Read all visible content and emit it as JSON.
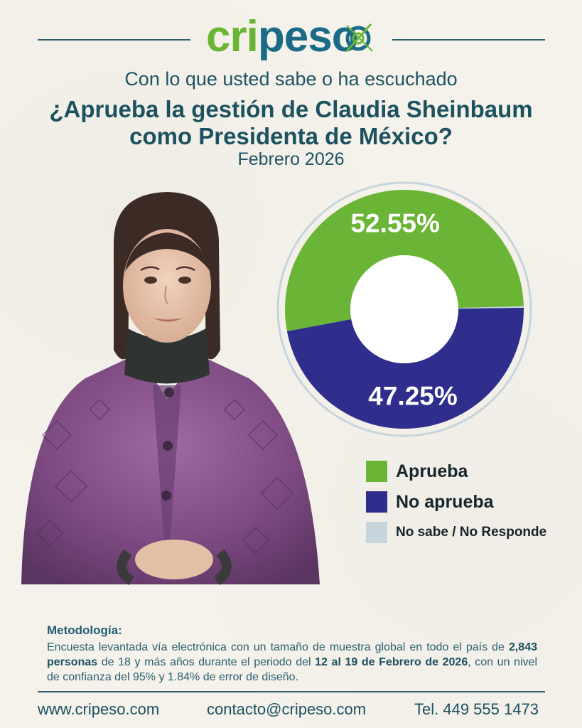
{
  "brand": {
    "logo_text": "cripeso",
    "logo_parts": [
      "cri",
      "pes",
      "o"
    ],
    "colors": {
      "green": "#6bb536",
      "blue": "#1b6b86"
    }
  },
  "header": {
    "subtitle": "Con lo que usted sabe o ha escuchado",
    "question_line1": "¿Aprueba la gestión de Claudia Sheinbaum",
    "question_line2": "como Presidenta de México?",
    "date": "Febrero 2026"
  },
  "chart_data": {
    "type": "pie",
    "style": "donut",
    "categories": [
      "Aprueba",
      "No aprueba",
      "No sabe / No Responde"
    ],
    "values": [
      52.55,
      47.25,
      0.2
    ],
    "labels": [
      "52.55%",
      "47.25%",
      ""
    ],
    "colors": [
      "#6bb536",
      "#2f2e8c",
      "#c7d4dc"
    ],
    "legend_position": "bottom-right"
  },
  "legend": {
    "items": [
      {
        "label": "Aprueba",
        "color": "#6bb536"
      },
      {
        "label": "No aprueba",
        "color": "#2f2e8c"
      },
      {
        "label": "No sabe / No Responde",
        "color": "#c7d4dc"
      }
    ]
  },
  "methodology": {
    "heading": "Metodología:",
    "p1": "Encuesta levantada vía electrónica con un tamaño de muestra global en todo el país de ",
    "b1": "2,843 personas",
    "p2": " de 18 y más años durante el periodo del ",
    "b2": "12 al 19 de Febrero de 2026",
    "p3": ", con un nivel de confianza del 95% y 1.84% de error de diseño."
  },
  "footer": {
    "website": "www.cripeso.com",
    "email": "contacto@cripeso.com",
    "phone": "Tel. 449 555 1473"
  }
}
